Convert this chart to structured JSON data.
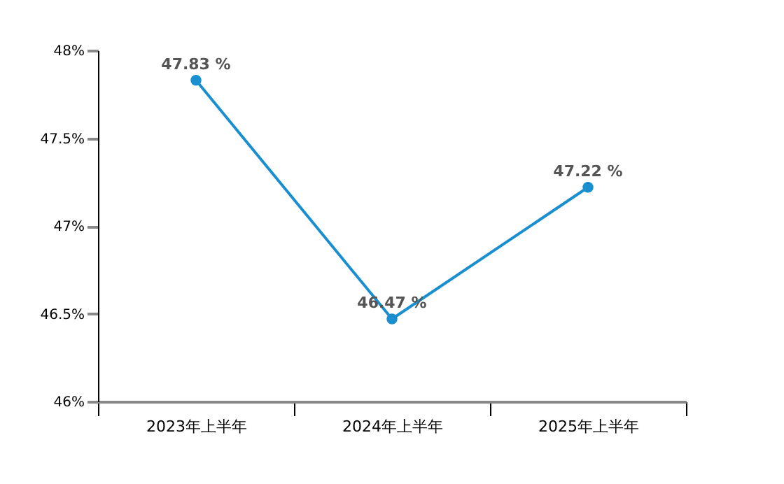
{
  "chart_data": {
    "type": "line",
    "categories": [
      "2023年上半年",
      "2024年上半年",
      "2025年上半年"
    ],
    "series": [
      {
        "color": "#1a8fcf",
        "values": [
          47.83,
          46.47,
          47.22
        ],
        "value_labels": [
          "47.83 %",
          "46.47 %",
          "47.22 %"
        ]
      }
    ],
    "ylim": [
      46,
      48
    ],
    "yticks": [
      {
        "value": 46,
        "label": "46%"
      },
      {
        "value": 46.5,
        "label": "46.5%"
      },
      {
        "value": 47,
        "label": "47%"
      },
      {
        "value": 47.5,
        "label": "47.5%"
      },
      {
        "value": 48,
        "label": "48%"
      }
    ],
    "marker": "circle"
  }
}
